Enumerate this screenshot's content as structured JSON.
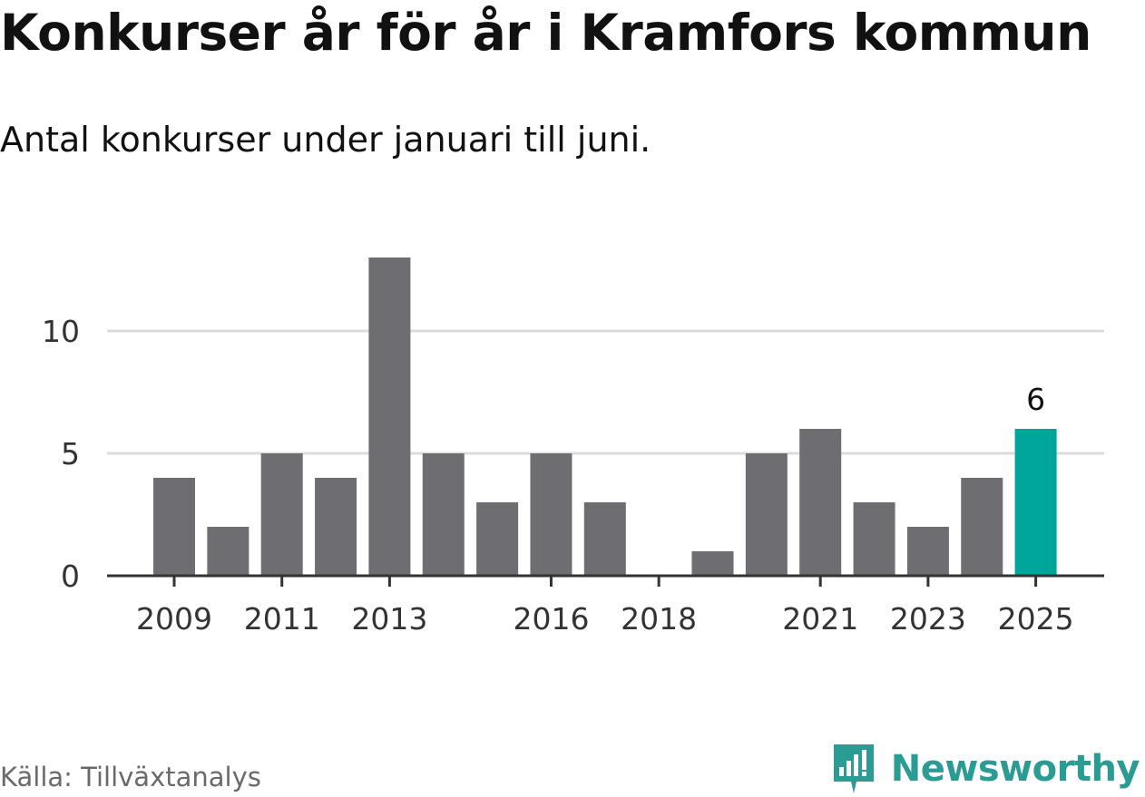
{
  "header": {
    "title": "Konkurser år för år i Kramfors kommun",
    "subtitle": "Antal konkurser under januari till juni."
  },
  "footer": {
    "source": "Källa: Tillväxtanalys",
    "brand": "Newsworthy",
    "brand_icon": "newsworthy-logo-icon"
  },
  "colors": {
    "bar": "#6e6d72",
    "highlight": "#00a59a",
    "grid": "#dcdcdc",
    "axis": "#333333",
    "brand": "#2b9c93"
  },
  "chart_data": {
    "type": "bar",
    "title": "Konkurser år för år i Kramfors kommun",
    "subtitle": "Antal konkurser under januari till juni.",
    "xlabel": "",
    "ylabel": "",
    "categories": [
      "2009",
      "2010",
      "2011",
      "2012",
      "2013",
      "2014",
      "2015",
      "2016",
      "2017",
      "2018",
      "2019",
      "2020",
      "2021",
      "2022",
      "2023",
      "2024",
      "2025"
    ],
    "values": [
      4,
      2,
      5,
      4,
      13,
      5,
      3,
      5,
      3,
      0,
      1,
      5,
      6,
      3,
      2,
      4,
      6
    ],
    "x_tick_labels": [
      "2009",
      "2011",
      "2013",
      "2016",
      "2018",
      "2021",
      "2023",
      "2025"
    ],
    "y_ticks": [
      0,
      5,
      10
    ],
    "ylim": [
      0,
      13
    ],
    "grid": true,
    "highlight": {
      "category": "2025",
      "label": "6"
    }
  }
}
